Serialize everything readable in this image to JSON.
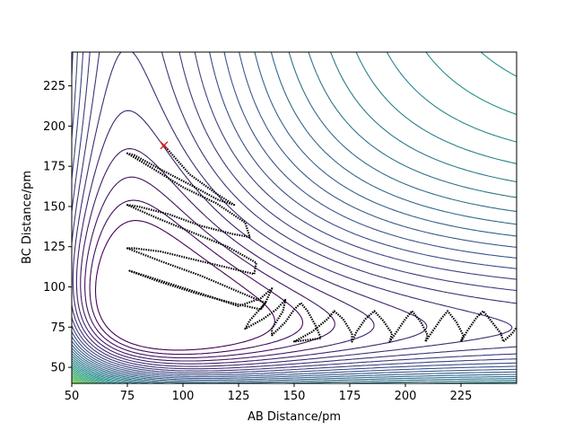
{
  "chart_data": {
    "type": "contour",
    "title": "",
    "xlabel": "AB Distance/pm",
    "ylabel": "BC Distance/pm",
    "xlim": [
      50,
      250
    ],
    "ylim": [
      40,
      246
    ],
    "xticks": [
      50,
      75,
      100,
      125,
      150,
      175,
      200,
      225
    ],
    "yticks": [
      50,
      75,
      100,
      125,
      150,
      175,
      200,
      225
    ],
    "grid": false,
    "colormap": [
      "#440154",
      "#3b528b",
      "#21918c",
      "#5ec962",
      "#fde725"
    ],
    "contour_levels": 40,
    "start_marker": {
      "symbol": "x",
      "color": "#e41a1c",
      "x": 91.5,
      "y": 188
    },
    "trajectory": {
      "color": "#000000",
      "points": [
        [
          91.5,
          188
        ],
        [
          103,
          170
        ],
        [
          115,
          158
        ],
        [
          123,
          151
        ],
        [
          116,
          154
        ],
        [
          104,
          163
        ],
        [
          90,
          173
        ],
        [
          78,
          182
        ],
        [
          75,
          183
        ],
        [
          86,
          174
        ],
        [
          100,
          162
        ],
        [
          115,
          152
        ],
        [
          128,
          140
        ],
        [
          130,
          131
        ],
        [
          122,
          133
        ],
        [
          108,
          138
        ],
        [
          94,
          145
        ],
        [
          80,
          150
        ],
        [
          75,
          151
        ],
        [
          88,
          143
        ],
        [
          104,
          134
        ],
        [
          120,
          125
        ],
        [
          133,
          115
        ],
        [
          132,
          108
        ],
        [
          120,
          112
        ],
        [
          105,
          117
        ],
        [
          90,
          122
        ],
        [
          78,
          124
        ],
        [
          75,
          124
        ],
        [
          90,
          116
        ],
        [
          108,
          107
        ],
        [
          125,
          97
        ],
        [
          137,
          90
        ],
        [
          135,
          86
        ],
        [
          122,
          90
        ],
        [
          106,
          96
        ],
        [
          90,
          103
        ],
        [
          78,
          109
        ],
        [
          76,
          110
        ],
        [
          92,
          103
        ],
        [
          110,
          95
        ],
        [
          125,
          88
        ],
        [
          135,
          93
        ],
        [
          140,
          99
        ],
        [
          137,
          90
        ],
        [
          130,
          79
        ],
        [
          128,
          74
        ],
        [
          136,
          80
        ],
        [
          142,
          86
        ],
        [
          146,
          92
        ],
        [
          145,
          85
        ],
        [
          140,
          74
        ],
        [
          140,
          70
        ],
        [
          146,
          78
        ],
        [
          150,
          86
        ],
        [
          153,
          90
        ],
        [
          156,
          85
        ],
        [
          160,
          75
        ],
        [
          162,
          68
        ],
        [
          150,
          66
        ],
        [
          158,
          72
        ],
        [
          165,
          80
        ],
        [
          168,
          85
        ],
        [
          172,
          80
        ],
        [
          176,
          71
        ],
        [
          176,
          66
        ],
        [
          178,
          72
        ],
        [
          182,
          80
        ],
        [
          186,
          85
        ],
        [
          190,
          79
        ],
        [
          194,
          71
        ],
        [
          193,
          66
        ],
        [
          196,
          72
        ],
        [
          200,
          80
        ],
        [
          203,
          85
        ],
        [
          207,
          78
        ],
        [
          210,
          70
        ],
        [
          209,
          66
        ],
        [
          212,
          72
        ],
        [
          216,
          80
        ],
        [
          219,
          85
        ],
        [
          223,
          78
        ],
        [
          226,
          70
        ],
        [
          225,
          66
        ],
        [
          228,
          73
        ],
        [
          232,
          81
        ],
        [
          235,
          85
        ],
        [
          239,
          78
        ],
        [
          243,
          71
        ],
        [
          244,
          66
        ],
        [
          248,
          71
        ],
        [
          250,
          75
        ]
      ]
    }
  }
}
